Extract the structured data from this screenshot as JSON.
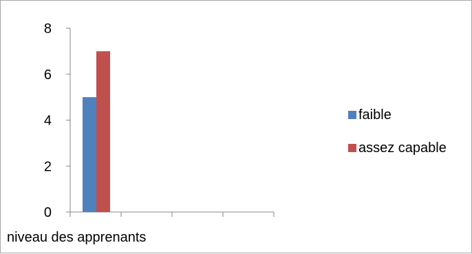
{
  "chart_data": {
    "type": "bar",
    "categories": [
      "niveau des apprenants",
      "",
      "",
      ""
    ],
    "series": [
      {
        "name": "faible",
        "values": [
          5,
          null,
          null,
          null
        ],
        "color": "#4f81bd"
      },
      {
        "name": "assez capable",
        "values": [
          7,
          null,
          null,
          null
        ],
        "color": "#c0504d"
      }
    ],
    "ylim": [
      0,
      8
    ],
    "yticks": [
      "0",
      "2",
      "4",
      "6",
      "8"
    ],
    "xlabel": "",
    "ylabel": "",
    "title": "",
    "grid": false,
    "legend_position": "right"
  }
}
